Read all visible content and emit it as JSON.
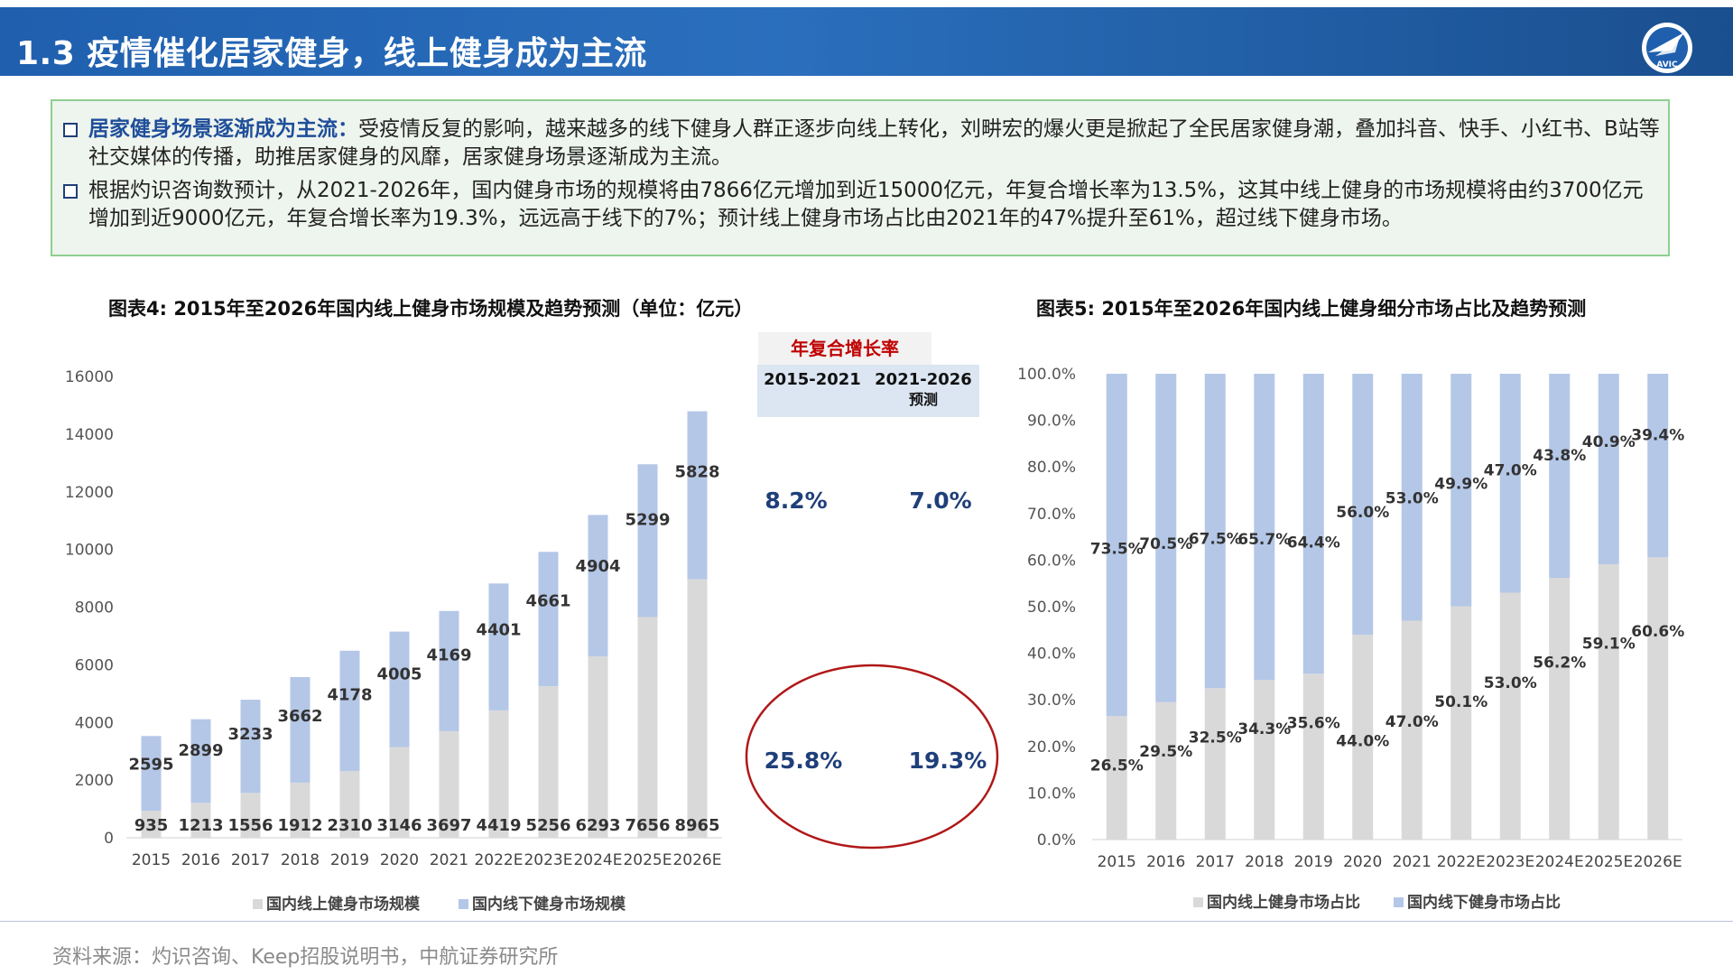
{
  "header": {
    "title": "1.3 疫情催化居家健身，线上健身成为主流",
    "logo_text": "AVIC"
  },
  "bullets": [
    {
      "lead": "居家健身场景逐渐成为主流：",
      "text": "受疫情反复的影响，越来越多的线下健身人群正逐步向线上转化，刘畊宏的爆火更是掀起了全民居家健身潮，叠加抖音、快手、小红书、B站等社交媒体的传播，助推居家健身的风靡，居家健身场景逐渐成为主流。"
    },
    {
      "lead": "",
      "text": "根据灼识咨询数预计，从2021-2026年，国内健身市场的规模将由7866亿元增加到近15000亿元，年复合增长率为13.5%，这其中线上健身的市场规模将由约3700亿元增加到近9000亿元，年复合增长率为19.3%，远远高于线下的7%；预计线上健身市场占比由2021年的47%提升至61%，超过线下健身市场。"
    }
  ],
  "cagr": {
    "tag": "年复合增长率",
    "col1": "2015-2021",
    "col2_line1": "2021-2026",
    "col2_line2": "预测",
    "offline": [
      "8.2%",
      "7.0%"
    ],
    "online": [
      "25.8%",
      "19.3%"
    ]
  },
  "colors": {
    "online": "#d9d9d9",
    "offline": "#b4c7e7",
    "header": "#1f5fae",
    "accent_red": "#c00000",
    "value_blue": "#1f3f7a"
  },
  "source": "资料来源：灼识咨询、Keep招股说明书，中航证券研究所",
  "chart_data": [
    {
      "type": "bar",
      "stacked": true,
      "title": "图表4: 2015年至2026年国内线上健身市场规模及趋势预测（单位：亿元）",
      "categories": [
        "2015",
        "2016",
        "2017",
        "2018",
        "2019",
        "2020",
        "2021",
        "2022E",
        "2023E",
        "2024E",
        "2025E",
        "2026E"
      ],
      "series": [
        {
          "name": "国内线上健身市场规模",
          "values": [
            935,
            1213,
            1556,
            1912,
            2310,
            3146,
            3697,
            4419,
            5256,
            6293,
            7656,
            8965
          ]
        },
        {
          "name": "国内线下健身市场规模",
          "values": [
            2595,
            2899,
            3233,
            3662,
            4178,
            4005,
            4169,
            4401,
            4661,
            4904,
            5299,
            5828
          ]
        }
      ],
      "ylim": [
        0,
        16000
      ],
      "yticks": [
        "0",
        "2000",
        "4000",
        "6000",
        "8000",
        "10000",
        "12000",
        "14000",
        "16000"
      ],
      "legend": "bottom"
    },
    {
      "type": "bar",
      "stacked": true,
      "percent": true,
      "title": "图表5:   2015年至2026年国内线上健身细分市场占比及趋势预测",
      "categories": [
        "2015",
        "2016",
        "2017",
        "2018",
        "2019",
        "2020",
        "2021",
        "2022E",
        "2023E",
        "2024E",
        "2025E",
        "2026E"
      ],
      "series": [
        {
          "name": "国内线上健身市场占比",
          "values": [
            26.5,
            29.5,
            32.5,
            34.3,
            35.6,
            44.0,
            47.0,
            50.1,
            53.0,
            56.2,
            59.1,
            60.6
          ]
        },
        {
          "name": "国内线下健身市场占比",
          "values": [
            73.5,
            70.5,
            67.5,
            65.7,
            64.4,
            56.0,
            53.0,
            49.9,
            47.0,
            43.8,
            40.9,
            39.4
          ]
        }
      ],
      "ylim": [
        0,
        100
      ],
      "yticks": [
        "0.0%",
        "10.0%",
        "20.0%",
        "30.0%",
        "40.0%",
        "50.0%",
        "60.0%",
        "70.0%",
        "80.0%",
        "90.0%",
        "100.0%"
      ],
      "legend": "bottom"
    }
  ]
}
